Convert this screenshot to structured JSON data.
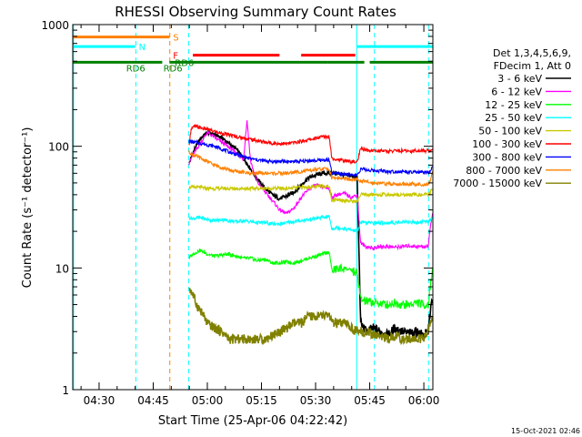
{
  "chart_data": {
    "type": "line",
    "title": "RHESSI Observing Summary Count Rates",
    "xlabel": "Start Time (25-Apr-06 04:22:42)",
    "ylabel": "Count Rate (s⁻¹ detector⁻¹)",
    "y_scale": "log",
    "ylim": [
      1,
      1000
    ],
    "xlim_minutes": [
      22.7,
      122.5
    ],
    "x_ticks": [
      {
        "m": 30,
        "label": "04:30"
      },
      {
        "m": 45,
        "label": "04:45"
      },
      {
        "m": 60,
        "label": "05:00"
      },
      {
        "m": 75,
        "label": "05:15"
      },
      {
        "m": 90,
        "label": "05:30"
      },
      {
        "m": 105,
        "label": "05:45"
      },
      {
        "m": 120,
        "label": "06:00"
      }
    ],
    "x_minor_step_min": 5,
    "y_ticks": [
      {
        "v": 1,
        "label": "1"
      },
      {
        "v": 10,
        "label": "10"
      },
      {
        "v": 100,
        "label": "100"
      },
      {
        "v": 1000,
        "label": "1000"
      }
    ],
    "legend": {
      "header": [
        "Det 1,3,4,5,6,9,",
        "FDecim 1, Att 0"
      ],
      "placement": "right"
    },
    "series": [
      {
        "name": "3 - 6 keV",
        "color": "#000000",
        "x": [
          54.9,
          55.5,
          56.5,
          58,
          60,
          62,
          64,
          66,
          68,
          70,
          72,
          74,
          76,
          78,
          80,
          82,
          84,
          86,
          88,
          90,
          92,
          93.8,
          94.5,
          96,
          98,
          100,
          101.5,
          102.5,
          104,
          106,
          108,
          110,
          112,
          114,
          116,
          118,
          120,
          121.2,
          121.8,
          122.4
        ],
        "y": [
          72,
          80,
          95,
          115,
          130,
          125,
          118,
          105,
          95,
          80,
          65,
          53,
          45,
          40,
          37,
          39,
          42,
          48,
          55,
          58,
          60,
          60,
          60,
          60,
          58,
          57,
          56,
          3.5,
          3.0,
          3.2,
          3.0,
          2.8,
          3.2,
          3.0,
          2.9,
          3.0,
          2.8,
          3.0,
          4.5,
          5.5
        ]
      },
      {
        "name": "6 - 12 keV",
        "color": "#ff00ff",
        "x": [
          54.9,
          56,
          58,
          60,
          62,
          64,
          66,
          68,
          70,
          71,
          72,
          73,
          74,
          76,
          78,
          80,
          82,
          84,
          86,
          88,
          90,
          92,
          93.8,
          94.5,
          96,
          98,
          100,
          101.5,
          102.5,
          104,
          106,
          108,
          110,
          112,
          114,
          116,
          118,
          120,
          121.2,
          121.8,
          122.4
        ],
        "y": [
          72,
          85,
          105,
          130,
          118,
          108,
          98,
          88,
          78,
          165,
          75,
          60,
          50,
          42,
          36,
          30,
          28,
          31,
          38,
          44,
          48,
          46,
          45,
          38,
          40,
          41,
          38,
          40,
          16,
          15,
          14.5,
          15,
          15,
          14.8,
          15,
          15.2,
          15,
          15,
          15,
          22,
          28
        ]
      },
      {
        "name": "12 - 25 keV",
        "color": "#00ff00",
        "x": [
          54.9,
          56,
          58,
          60,
          62,
          64,
          66,
          68,
          70,
          72,
          74,
          76,
          78,
          80,
          82,
          84,
          86,
          88,
          90,
          92,
          93.8,
          94.5,
          96,
          98,
          100,
          101.5,
          102.5,
          104,
          106,
          108,
          110,
          112,
          114,
          116,
          118,
          120,
          121.2,
          121.8,
          122.4
        ],
        "y": [
          12,
          13,
          14,
          13,
          12.5,
          12.8,
          13,
          12.5,
          12,
          12,
          11.5,
          11.8,
          11,
          11,
          11.2,
          11,
          11.5,
          12,
          12.5,
          13,
          13.5,
          9.5,
          9.8,
          10,
          9.5,
          9,
          5.5,
          5.3,
          5.2,
          5.1,
          5,
          5.2,
          5,
          5,
          5.2,
          5,
          5,
          7,
          10
        ]
      },
      {
        "name": "25 - 50 keV",
        "color": "#00ffff",
        "x": [
          54.9,
          56,
          58,
          60,
          62,
          64,
          66,
          68,
          70,
          72,
          74,
          76,
          78,
          80,
          82,
          84,
          86,
          88,
          90,
          92,
          93.8,
          94.5,
          96,
          98,
          100,
          101.5,
          102.5,
          104,
          106,
          108,
          110,
          112,
          114,
          116,
          118,
          120,
          121.2,
          121.8,
          122.4
        ],
        "y": [
          26,
          25.5,
          26,
          25,
          24.5,
          25,
          24.5,
          24,
          24.5,
          24,
          23.5,
          23.5,
          23,
          23,
          23.5,
          24,
          24.5,
          25,
          25.5,
          26,
          26.5,
          21,
          21.5,
          21,
          20.5,
          20,
          23.5,
          23.5,
          23.5,
          23.5,
          23.5,
          23.5,
          24,
          24,
          23.5,
          24,
          24,
          25,
          26
        ]
      },
      {
        "name": "50 - 100 keV",
        "color": "#c8c800",
        "x": [
          54.9,
          56,
          58,
          60,
          62,
          64,
          66,
          68,
          70,
          72,
          74,
          76,
          78,
          80,
          82,
          84,
          86,
          88,
          90,
          92,
          93.8,
          94.5,
          96,
          98,
          100,
          101.5,
          102.5,
          104,
          106,
          108,
          110,
          112,
          114,
          116,
          118,
          120,
          121.2,
          121.8,
          122.4
        ],
        "y": [
          46,
          46,
          46,
          45,
          45,
          45,
          45,
          45,
          45,
          45,
          45,
          45,
          45,
          45,
          45,
          45.5,
          46,
          46,
          46.5,
          47,
          47,
          36,
          36.5,
          36,
          35.5,
          35,
          40,
          40,
          40,
          40,
          40,
          40,
          40,
          40,
          40,
          40,
          40,
          42,
          44
        ]
      },
      {
        "name": "100 - 300 keV",
        "color": "#ff0000",
        "x": [
          54.9,
          55.5,
          56.5,
          58,
          60,
          62,
          64,
          66,
          68,
          70,
          72,
          74,
          76,
          78,
          80,
          82,
          84,
          86,
          88,
          90,
          92,
          93.8,
          94.5,
          96,
          98,
          100,
          101.5,
          102.5,
          104,
          106,
          108,
          110,
          112,
          114,
          116,
          118,
          120,
          121.2,
          121.8,
          122.4
        ],
        "y": [
          100,
          140,
          145,
          142,
          138,
          132,
          128,
          124,
          120,
          117,
          114,
          111,
          108,
          106,
          105,
          105,
          107,
          110,
          113,
          116,
          120,
          120,
          80,
          78,
          76,
          75,
          74,
          95,
          93,
          92,
          92,
          91,
          92,
          92,
          91,
          92,
          92,
          92,
          93,
          95
        ]
      },
      {
        "name": "300 - 800 keV",
        "color": "#0000ff",
        "x": [
          54.9,
          56,
          58,
          60,
          62,
          64,
          66,
          68,
          70,
          72,
          74,
          76,
          78,
          80,
          82,
          84,
          86,
          88,
          90,
          92,
          93.8,
          94.5,
          96,
          98,
          100,
          101.5,
          102.5,
          104,
          106,
          108,
          110,
          112,
          114,
          116,
          118,
          120,
          121.2,
          121.8,
          122.4
        ],
        "y": [
          110,
          108,
          106,
          103,
          100,
          95,
          90,
          86,
          82,
          79,
          77,
          76,
          75,
          75,
          75,
          75,
          75,
          76,
          76,
          77,
          77,
          60,
          60,
          59,
          58,
          58,
          65,
          64,
          63,
          63,
          62,
          62,
          62,
          61,
          61,
          61,
          60,
          62,
          68
        ]
      },
      {
        "name": "800 - 7000 keV",
        "color": "#ff8000",
        "x": [
          54.9,
          56,
          58,
          60,
          62,
          64,
          66,
          68,
          70,
          72,
          74,
          76,
          78,
          80,
          82,
          84,
          86,
          88,
          90,
          92,
          93.8,
          94.5,
          96,
          98,
          100,
          101.5,
          102.5,
          104,
          106,
          108,
          110,
          112,
          114,
          116,
          118,
          120,
          121.2,
          121.8,
          122.4
        ],
        "y": [
          90,
          85,
          80,
          75,
          70,
          67,
          64,
          62,
          61,
          60,
          60,
          60,
          60,
          60,
          60,
          61,
          62,
          63,
          64,
          65,
          65,
          55,
          55,
          54,
          53,
          53,
          52,
          51,
          50,
          50,
          49,
          49,
          49,
          49,
          49,
          48,
          48,
          52,
          62
        ]
      },
      {
        "name": "7000 - 15000 keV",
        "color": "#808000",
        "x": [
          54.9,
          56,
          57,
          58,
          59,
          60,
          62,
          64,
          66,
          68,
          70,
          72,
          74,
          76,
          78,
          80,
          82,
          84,
          86,
          88,
          90,
          92,
          93.8,
          94.5,
          96,
          98,
          100,
          101.5,
          102.5,
          104,
          106,
          108,
          110,
          112,
          114,
          116,
          118,
          120,
          121.2,
          121.8,
          122.4
        ],
        "y": [
          7,
          6,
          5,
          4.5,
          4,
          3.5,
          3.2,
          3,
          2.6,
          2.6,
          2.6,
          2.6,
          2.6,
          2.6,
          2.8,
          3,
          3.2,
          3.5,
          3.5,
          4,
          4,
          4,
          4.2,
          3.5,
          3.5,
          3.5,
          3.2,
          3,
          3,
          3,
          2.8,
          2.8,
          2.6,
          2.8,
          2.6,
          2.6,
          2.6,
          2.6,
          3,
          3.5,
          4
        ]
      }
    ],
    "state_bars": [
      {
        "label": "S",
        "color": "#ff8000",
        "y": 790,
        "segments": [
          [
            22.7,
            49.5
          ]
        ],
        "label_at": 50.5
      },
      {
        "label": "N",
        "color": "#00ffff",
        "y": 660,
        "segments": [
          [
            22.7,
            40
          ],
          [
            101.5,
            122.5
          ]
        ],
        "label_at": 41
      },
      {
        "label": "F",
        "color": "#ff0000",
        "y": 560,
        "segments": [
          [
            56,
            80
          ],
          [
            86,
            101
          ]
        ],
        "label_at": 50.5
      },
      {
        "label": "RD6",
        "color": "#008000",
        "y": 490,
        "segments": [
          [
            22.7,
            47.5
          ],
          [
            49.5,
            93.5
          ],
          [
            93.5,
            103.5
          ],
          [
            105,
            122.5
          ]
        ],
        "label_at": 51
      }
    ],
    "state_labels_extra": [
      {
        "label": "RD6",
        "color": "#008000",
        "m": 37.5,
        "y": 440
      },
      {
        "label": "RD6",
        "color": "#008000",
        "m": 47.8,
        "y": 440
      }
    ],
    "vlines": [
      {
        "m": 22.9,
        "color": "#00ffff",
        "dashed": false
      },
      {
        "m": 40.2,
        "color": "#00ffff",
        "dashed": true
      },
      {
        "m": 49.6,
        "color": "#ff8000",
        "dashed": true
      },
      {
        "m": 54.8,
        "color": "#00ffff",
        "dashed": true
      },
      {
        "m": 101.4,
        "color": "#00ffff",
        "dashed": false
      },
      {
        "m": 106.3,
        "color": "#00ffff",
        "dashed": true
      },
      {
        "m": 121.3,
        "color": "#00ffff",
        "dashed": true
      }
    ]
  },
  "footer_timestamp": "15-Oct-2021 02:46"
}
